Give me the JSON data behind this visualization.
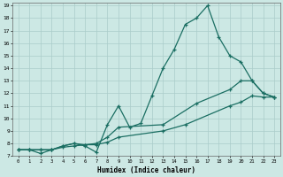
{
  "xlabel": "Humidex (Indice chaleur)",
  "bg_color": "#cce8e4",
  "grid_color": "#aaccca",
  "line_color": "#1a6e62",
  "xlim": [
    -0.5,
    23.5
  ],
  "ylim": [
    7,
    19.2
  ],
  "xticks": [
    0,
    1,
    2,
    3,
    4,
    5,
    6,
    7,
    8,
    9,
    10,
    11,
    12,
    13,
    14,
    15,
    16,
    17,
    18,
    19,
    20,
    21,
    22,
    23
  ],
  "yticks": [
    7,
    8,
    9,
    10,
    11,
    12,
    13,
    14,
    15,
    16,
    17,
    18,
    19
  ],
  "line1_x": [
    0,
    1,
    2,
    3,
    4,
    5,
    6,
    7,
    8,
    9,
    10,
    11,
    12,
    13,
    14,
    15,
    16,
    17,
    18,
    19,
    20,
    21,
    22,
    23
  ],
  "line1_y": [
    7.5,
    7.5,
    7.2,
    7.5,
    7.8,
    8.0,
    7.8,
    7.3,
    9.5,
    11.0,
    9.3,
    9.6,
    11.8,
    14.0,
    15.5,
    17.5,
    18.0,
    19.0,
    16.5,
    15.0,
    14.5,
    13.0,
    12.0,
    11.7
  ],
  "line2_x": [
    0,
    1,
    2,
    3,
    4,
    5,
    6,
    7,
    8,
    9,
    13,
    16,
    19,
    20,
    21,
    22,
    23
  ],
  "line2_y": [
    7.5,
    7.5,
    7.5,
    7.5,
    7.8,
    8.0,
    7.9,
    8.0,
    8.5,
    9.3,
    9.5,
    11.2,
    12.3,
    13.0,
    13.0,
    12.0,
    11.7
  ],
  "line3_x": [
    0,
    1,
    2,
    3,
    4,
    5,
    6,
    7,
    8,
    9,
    13,
    15,
    19,
    20,
    21,
    22,
    23
  ],
  "line3_y": [
    7.5,
    7.5,
    7.5,
    7.5,
    7.7,
    7.8,
    7.9,
    7.9,
    8.1,
    8.5,
    9.0,
    9.5,
    11.0,
    11.3,
    11.8,
    11.7,
    11.7
  ]
}
